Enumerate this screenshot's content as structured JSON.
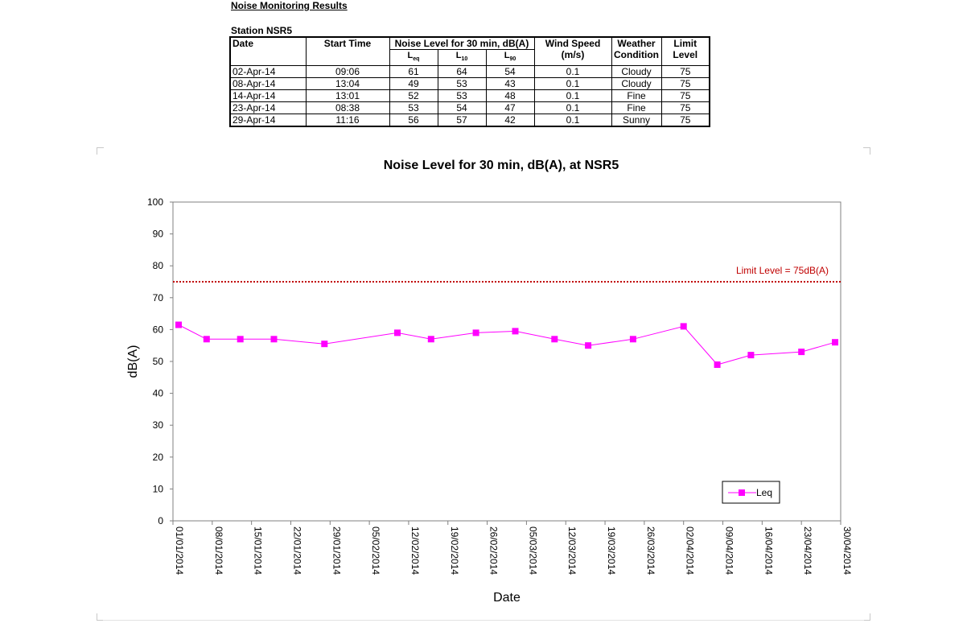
{
  "report": {
    "title": "Noise Monitoring Results",
    "station": "Station NSR5"
  },
  "table": {
    "headers": {
      "date": "Date",
      "start_time": "Start Time",
      "noise_group": "Noise Level for 30 min, dB(A)",
      "l_eq": "L",
      "l_eq_sub": "eq",
      "l_10": "L",
      "l_10_sub": "10",
      "l_90": "L",
      "l_90_sub": "90",
      "wind_line1": "Wind Speed",
      "wind_line2": "(m/s)",
      "weather_line1": "Weather",
      "weather_line2": "Condition",
      "limit_line1": "Limit",
      "limit_line2": "Level"
    },
    "rows": [
      {
        "date": "02-Apr-14",
        "time": "09:06",
        "leq": "61",
        "l10": "64",
        "l90": "54",
        "wind": "0.1",
        "weather": "Cloudy",
        "limit": "75"
      },
      {
        "date": "08-Apr-14",
        "time": "13:04",
        "leq": "49",
        "l10": "53",
        "l90": "43",
        "wind": "0.1",
        "weather": "Cloudy",
        "limit": "75"
      },
      {
        "date": "14-Apr-14",
        "time": "13:01",
        "leq": "52",
        "l10": "53",
        "l90": "48",
        "wind": "0.1",
        "weather": "Fine",
        "limit": "75"
      },
      {
        "date": "23-Apr-14",
        "time": "08:38",
        "leq": "53",
        "l10": "54",
        "l90": "47",
        "wind": "0.1",
        "weather": "Fine",
        "limit": "75"
      },
      {
        "date": "29-Apr-14",
        "time": "11:16",
        "leq": "56",
        "l10": "57",
        "l90": "42",
        "wind": "0.1",
        "weather": "Sunny",
        "limit": "75"
      }
    ]
  },
  "chart_data": {
    "type": "line",
    "title": "Noise Level for 30 min, dB(A), at NSR5",
    "xlabel": "Date",
    "ylabel": "dB(A)",
    "ylim": [
      0,
      100
    ],
    "yticks": [
      0,
      10,
      20,
      30,
      40,
      50,
      60,
      70,
      80,
      90,
      100
    ],
    "xlim": [
      "01/01/2014",
      "30/04/2014"
    ],
    "xticks": [
      "01/01/2014",
      "08/01/2014",
      "15/01/2014",
      "22/01/2014",
      "29/01/2014",
      "05/02/2014",
      "12/02/2014",
      "19/02/2014",
      "26/02/2014",
      "05/03/2014",
      "12/03/2014",
      "19/03/2014",
      "26/03/2014",
      "02/04/2014",
      "09/04/2014",
      "16/04/2014",
      "23/04/2014",
      "30/04/2014"
    ],
    "grid": false,
    "legend": "bottom-right",
    "series": [
      {
        "name": "Leq",
        "color": "#ff00ff",
        "marker": "square",
        "x": [
          "02/01/2014",
          "07/01/2014",
          "13/01/2014",
          "19/01/2014",
          "28/01/2014",
          "10/02/2014",
          "16/02/2014",
          "24/02/2014",
          "03/03/2014",
          "10/03/2014",
          "16/03/2014",
          "24/03/2014",
          "02/04/2014",
          "08/04/2014",
          "14/04/2014",
          "23/04/2014",
          "29/04/2014"
        ],
        "y": [
          61.5,
          57,
          57,
          57,
          55.5,
          59,
          57,
          59,
          59.5,
          57,
          55,
          57,
          61,
          49,
          52,
          53,
          56
        ]
      }
    ],
    "reference_line": {
      "value": 75,
      "label": "Limit Level  = 75dB(A)",
      "color": "#c00000",
      "style": "dotted"
    }
  }
}
